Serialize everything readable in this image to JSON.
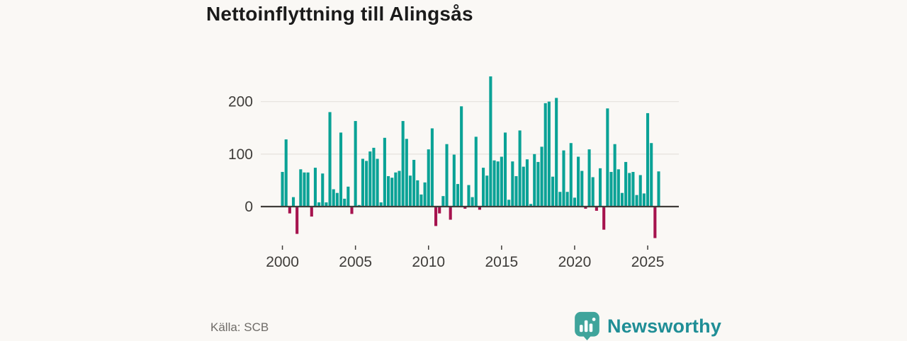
{
  "title": "Nettoinflyttning till Alingsås",
  "source": "Källa: SCB",
  "brand": {
    "name": "Newsworthy",
    "icon": "newsworthy-pin-barchart-icon",
    "icon_color": "#3FA49B",
    "text_color": "#1F8E96"
  },
  "chart_data": {
    "type": "bar",
    "title": "Nettoinflyttning till Alingsås",
    "ylabel": "",
    "xlabel": "",
    "periodicity": "quarterly",
    "start_year": 2000,
    "x_ticks": [
      "2000",
      "2005",
      "2010",
      "2015",
      "2020",
      "2025"
    ],
    "y_ticks": [
      0,
      100,
      200
    ],
    "ylim": [
      -75,
      255
    ],
    "grid": "horizontal",
    "legend": "none",
    "colors": {
      "positive": "#0AA296",
      "negative": "#A6134E",
      "axis": "#403D3A",
      "gridline": "#E7E4DF",
      "tick_text": "#3F3D3A"
    },
    "values": [
      66,
      128,
      -13,
      18,
      -52,
      71,
      65,
      65,
      -19,
      74,
      8,
      63,
      8,
      180,
      33,
      26,
      141,
      15,
      38,
      -14,
      163,
      3,
      91,
      87,
      105,
      112,
      91,
      8,
      131,
      58,
      55,
      65,
      68,
      163,
      129,
      59,
      89,
      50,
      23,
      46,
      109,
      149,
      -37,
      -13,
      20,
      119,
      -25,
      99,
      43,
      191,
      -4,
      41,
      18,
      133,
      -6,
      74,
      59,
      248,
      88,
      86,
      95,
      141,
      13,
      86,
      58,
      145,
      76,
      90,
      5,
      100,
      85,
      114,
      197,
      200,
      57,
      207,
      28,
      107,
      28,
      121,
      17,
      95,
      68,
      -4,
      109,
      56,
      -8,
      73,
      -44,
      187,
      66,
      119,
      71,
      26,
      85,
      64,
      66,
      22,
      60,
      25,
      178,
      121,
      -60,
      67
    ]
  }
}
